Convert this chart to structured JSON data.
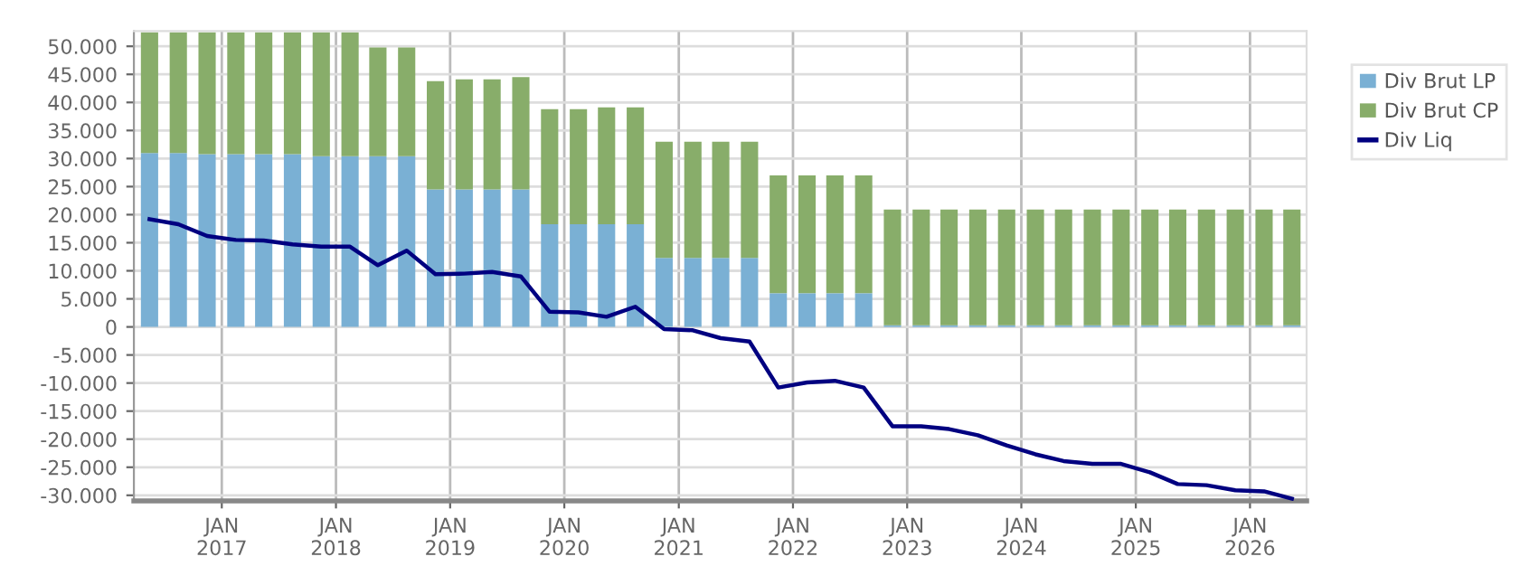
{
  "chart_data": {
    "type": "bar",
    "stacked": true,
    "x": [
      "2016-05-15",
      "2016-08-15",
      "2016-11-15",
      "2017-02-15",
      "2017-05-15",
      "2017-08-15",
      "2017-11-15",
      "2018-02-15",
      "2018-05-15",
      "2018-08-15",
      "2018-11-15",
      "2019-02-15",
      "2019-05-15",
      "2019-08-15",
      "2019-11-15",
      "2020-02-15",
      "2020-05-15",
      "2020-08-15",
      "2020-11-15",
      "2021-02-15",
      "2021-05-15",
      "2021-08-15",
      "2021-11-15",
      "2022-02-15",
      "2022-05-15",
      "2022-08-15",
      "2022-11-15",
      "2023-02-15",
      "2023-05-15",
      "2023-08-15",
      "2023-11-15",
      "2024-02-15",
      "2024-05-15",
      "2024-08-15",
      "2024-11-15",
      "2025-02-15",
      "2025-05-15",
      "2025-08-15",
      "2025-11-15",
      "2026-02-15",
      "2026-05-15"
    ],
    "series": [
      {
        "name": "Div Brut LP",
        "color": "#7ab0d4",
        "values": [
          31000,
          31000,
          30800,
          30800,
          30800,
          30800,
          30400,
          30400,
          30400,
          30400,
          24500,
          24500,
          24500,
          24500,
          18300,
          18300,
          18300,
          18300,
          12300,
          12300,
          12300,
          12300,
          6000,
          6000,
          6000,
          6000,
          300,
          300,
          300,
          300,
          300,
          300,
          300,
          300,
          300,
          300,
          300,
          300,
          300,
          300,
          300
        ]
      },
      {
        "name": "Div Brut CP",
        "color": "#88ad6a",
        "values": [
          21500,
          21500,
          21700,
          21700,
          21700,
          21700,
          22100,
          22100,
          19400,
          19400,
          19300,
          19600,
          19600,
          20000,
          20500,
          20500,
          20800,
          20800,
          20700,
          20700,
          20700,
          20700,
          21000,
          21000,
          21000,
          21000,
          20600,
          20600,
          20600,
          20600,
          20600,
          20600,
          20600,
          20600,
          20600,
          20600,
          20600,
          20600,
          20600,
          20600,
          20600
        ]
      },
      {
        "name": "Div Liq",
        "type": "line",
        "color": "#000080",
        "values": [
          19200,
          18300,
          16200,
          15500,
          15400,
          14700,
          14300,
          14300,
          11000,
          13600,
          9400,
          9500,
          9800,
          9000,
          2700,
          2600,
          1800,
          3600,
          -400,
          -600,
          -2000,
          -2600,
          -10800,
          -9900,
          -9600,
          -10800,
          -17700,
          -17700,
          -18200,
          -19300,
          -21100,
          -22700,
          -23900,
          -24400,
          -24400,
          -25900,
          -28000,
          -28200,
          -29100,
          -29300,
          -30600
        ]
      }
    ],
    "xlim": [
      "2016-03-26",
      "2026-07-01"
    ],
    "xticks": [
      {
        "value": "2017-01-01",
        "label": "JAN\n2017"
      },
      {
        "value": "2018-01-01",
        "label": "JAN\n2018"
      },
      {
        "value": "2019-01-01",
        "label": "JAN\n2019"
      },
      {
        "value": "2020-01-01",
        "label": "JAN\n2020"
      },
      {
        "value": "2021-01-01",
        "label": "JAN\n2021"
      },
      {
        "value": "2022-01-01",
        "label": "JAN\n2022"
      },
      {
        "value": "2023-01-01",
        "label": "JAN\n2023"
      },
      {
        "value": "2024-01-01",
        "label": "JAN\n2024"
      },
      {
        "value": "2025-01-01",
        "label": "JAN\n2025"
      },
      {
        "value": "2026-01-01",
        "label": "JAN\n2026"
      }
    ],
    "ylim": [
      -31000,
      52700
    ],
    "yticks": [
      {
        "value": -30000,
        "label": "-30.000"
      },
      {
        "value": -25000,
        "label": "-25.000"
      },
      {
        "value": -20000,
        "label": "-20.000"
      },
      {
        "value": -15000,
        "label": "-15.000"
      },
      {
        "value": -10000,
        "label": "-10.000"
      },
      {
        "value": -5000,
        "label": "-5.000"
      },
      0,
      {
        "value": 5000,
        "label": "5.000"
      },
      {
        "value": 10000,
        "label": "10.000"
      },
      {
        "value": 15000,
        "label": "15.000"
      },
      {
        "value": 20000,
        "label": "20.000"
      },
      {
        "value": 25000,
        "label": "25.000"
      },
      {
        "value": 30000,
        "label": "30.000"
      },
      {
        "value": 35000,
        "label": "35.000"
      },
      {
        "value": 40000,
        "label": "40.000"
      },
      {
        "value": 45000,
        "label": "45.000"
      },
      {
        "value": 50000,
        "label": "50.000"
      }
    ],
    "grid": true,
    "legend": "top right"
  }
}
